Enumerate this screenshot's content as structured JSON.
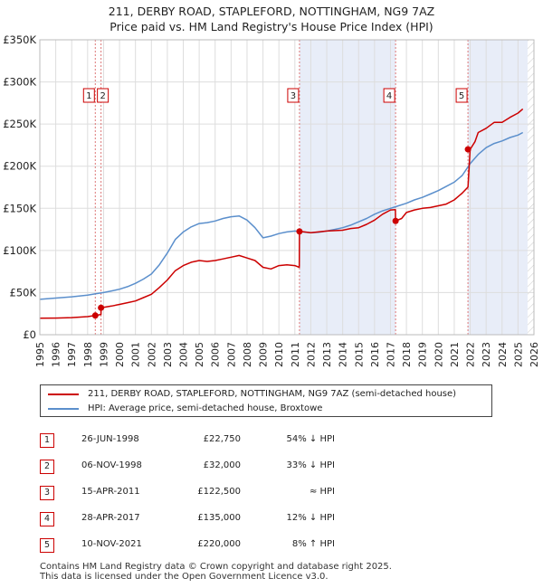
{
  "title_line1": "211, DERBY ROAD, STAPLEFORD, NOTTINGHAM, NG9 7AZ",
  "title_line2": "Price paid vs. HM Land Registry's House Price Index (HPI)",
  "colors": {
    "property": "#cc0000",
    "hpi": "#5b8fcc",
    "shade": "#e8edf8",
    "grid": "#dddddd"
  },
  "chart_data": {
    "type": "line",
    "xlim": [
      1995,
      2026
    ],
    "ylim": [
      0,
      350000
    ],
    "y_ticks": [
      0,
      50000,
      100000,
      150000,
      200000,
      250000,
      300000,
      350000
    ],
    "y_tick_labels": [
      "£0",
      "£50K",
      "£100K",
      "£150K",
      "£200K",
      "£250K",
      "£300K",
      "£350K"
    ],
    "x_ticks": [
      1995,
      1996,
      1997,
      1998,
      1999,
      2000,
      2001,
      2002,
      2003,
      2004,
      2005,
      2006,
      2007,
      2008,
      2009,
      2010,
      2011,
      2012,
      2013,
      2014,
      2015,
      2016,
      2017,
      2018,
      2019,
      2020,
      2021,
      2022,
      2023,
      2024,
      2025,
      2026
    ],
    "x_tick_labels": [
      "1995",
      "1996",
      "1997",
      "1998",
      "1999",
      "2000",
      "2001",
      "2002",
      "2003",
      "2004",
      "2005",
      "2006",
      "2007",
      "2008",
      "2009",
      "2010",
      "2011",
      "2012",
      "2013",
      "2014",
      "2015",
      "2016",
      "2017",
      "2018",
      "2019",
      "2020",
      "2021",
      "2022",
      "2023",
      "2024",
      "2025",
      "2026"
    ],
    "shaded_ranges": [
      [
        2011.29,
        2017.32
      ],
      [
        2021.86,
        2025.6
      ]
    ],
    "hatched_from": 2025.6,
    "series": [
      {
        "name": "211, DERBY ROAD, STAPLEFORD, NOTTINGHAM, NG9 7AZ (semi-detached house)",
        "x": [
          1995.0,
          1996.0,
          1997.0,
          1998.0,
          1998.48,
          1998.48,
          1998.84,
          1998.84,
          1999.5,
          2000.0,
          2000.5,
          2001.0,
          2001.5,
          2002.0,
          2002.5,
          2003.0,
          2003.5,
          2004.0,
          2004.5,
          2005.0,
          2005.5,
          2006.0,
          2006.5,
          2007.0,
          2007.5,
          2008.0,
          2008.5,
          2009.0,
          2009.5,
          2010.0,
          2010.5,
          2011.0,
          2011.28,
          2011.29,
          2011.6,
          2012.0,
          2013.0,
          2014.0,
          2014.5,
          2015.0,
          2015.5,
          2016.0,
          2016.5,
          2017.0,
          2017.31,
          2017.32,
          2017.7,
          2018.0,
          2018.5,
          2019.0,
          2019.5,
          2020.0,
          2020.5,
          2021.0,
          2021.5,
          2021.85,
          2021.86,
          2022.0,
          2022.3,
          2022.5,
          2023.0,
          2023.5,
          2024.0,
          2024.5,
          2025.0,
          2025.3
        ],
        "values": [
          19500,
          19800,
          20300,
          21500,
          22750,
          22750,
          24000,
          32000,
          34000,
          36000,
          38000,
          40000,
          44000,
          48000,
          56000,
          65000,
          76000,
          82000,
          86000,
          88000,
          87000,
          88000,
          90000,
          92000,
          94000,
          91000,
          88000,
          80000,
          78000,
          82000,
          83000,
          82000,
          80000,
          122500,
          122000,
          121000,
          123000,
          124000,
          126000,
          127000,
          131000,
          136000,
          143000,
          148000,
          148500,
          135000,
          138000,
          145000,
          148000,
          150000,
          151000,
          153000,
          155000,
          160000,
          168000,
          175000,
          175000,
          220000,
          229000,
          240000,
          245000,
          252000,
          252000,
          258000,
          263000,
          268000
        ]
      },
      {
        "name": "HPI: Average price, semi-detached house, Broxtowe",
        "x": [
          1995.0,
          1996.0,
          1997.0,
          1998.0,
          1998.5,
          1999.0,
          1999.5,
          2000.0,
          2000.5,
          2001.0,
          2001.5,
          2002.0,
          2002.5,
          2003.0,
          2003.5,
          2004.0,
          2004.5,
          2005.0,
          2005.5,
          2006.0,
          2006.5,
          2007.0,
          2007.5,
          2008.0,
          2008.5,
          2009.0,
          2009.5,
          2010.0,
          2010.5,
          2011.0,
          2011.5,
          2012.0,
          2012.5,
          2013.0,
          2013.5,
          2014.0,
          2014.5,
          2015.0,
          2015.5,
          2016.0,
          2016.5,
          2017.0,
          2017.5,
          2018.0,
          2018.5,
          2019.0,
          2019.5,
          2020.0,
          2020.5,
          2021.0,
          2021.5,
          2022.0,
          2022.5,
          2023.0,
          2023.5,
          2024.0,
          2024.5,
          2025.0,
          2025.3
        ],
        "values": [
          42000,
          43500,
          45000,
          47000,
          48500,
          50000,
          52000,
          54000,
          57000,
          61000,
          66000,
          72000,
          83000,
          97000,
          113000,
          122000,
          128000,
          132000,
          133000,
          135000,
          138000,
          140000,
          141000,
          136000,
          127000,
          115000,
          117000,
          120000,
          122000,
          123000,
          122000,
          121000,
          121500,
          123000,
          125000,
          127000,
          130000,
          134000,
          138000,
          143000,
          147000,
          150000,
          153000,
          156000,
          160000,
          163000,
          167000,
          171000,
          176000,
          181000,
          189000,
          203000,
          214000,
          222000,
          227000,
          230000,
          234000,
          237000,
          240000
        ]
      }
    ],
    "transactions": [
      {
        "label": "1",
        "x": 1998.48,
        "y": 22750
      },
      {
        "label": "2",
        "x": 1998.84,
        "y": 32000
      },
      {
        "label": "3",
        "x": 2011.29,
        "y": 122500
      },
      {
        "label": "4",
        "x": 2017.32,
        "y": 135000
      },
      {
        "label": "5",
        "x": 2021.86,
        "y": 220000
      }
    ]
  },
  "legend": {
    "property_label": "211, DERBY ROAD, STAPLEFORD, NOTTINGHAM, NG9 7AZ (semi-detached house)",
    "hpi_label": "HPI: Average price, semi-detached house, Broxtowe"
  },
  "table": [
    {
      "num": "1",
      "date": "26-JUN-1998",
      "price": "£22,750",
      "hpi": "54% ↓ HPI"
    },
    {
      "num": "2",
      "date": "06-NOV-1998",
      "price": "£32,000",
      "hpi": "33% ↓ HPI"
    },
    {
      "num": "3",
      "date": "15-APR-2011",
      "price": "£122,500",
      "hpi": "≈ HPI"
    },
    {
      "num": "4",
      "date": "28-APR-2017",
      "price": "£135,000",
      "hpi": "12% ↓ HPI"
    },
    {
      "num": "5",
      "date": "10-NOV-2021",
      "price": "£220,000",
      "hpi": "8% ↑ HPI"
    }
  ],
  "footer_line1": "Contains HM Land Registry data © Crown copyright and database right 2025.",
  "footer_line2": "This data is licensed under the Open Government Licence v3.0."
}
